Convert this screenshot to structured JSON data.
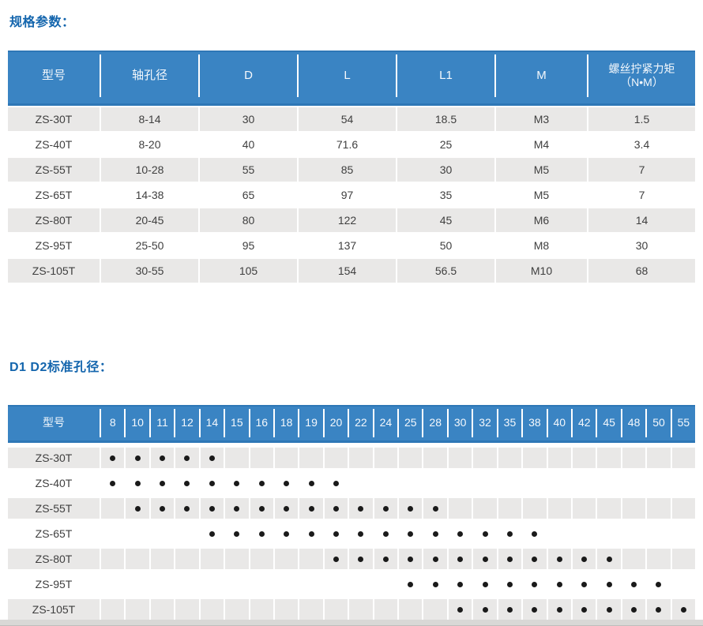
{
  "sections": {
    "spec": {
      "title": "规格参数："
    },
    "bore": {
      "title": "D1 D2标准孔径："
    }
  },
  "spec_table": {
    "headers": [
      [
        "型号"
      ],
      [
        "轴孔径"
      ],
      [
        "D"
      ],
      [
        "L"
      ],
      [
        "L1"
      ],
      [
        "M"
      ],
      [
        "螺丝拧紧力矩",
        "（N•M）"
      ]
    ],
    "rows": [
      [
        "ZS-30T",
        "8-14",
        "30",
        "54",
        "18.5",
        "M3",
        "1.5"
      ],
      [
        "ZS-40T",
        "8-20",
        "40",
        "71.6",
        "25",
        "M4",
        "3.4"
      ],
      [
        "ZS-55T",
        "10-28",
        "55",
        "85",
        "30",
        "M5",
        "7"
      ],
      [
        "ZS-65T",
        "14-38",
        "65",
        "97",
        "35",
        "M5",
        "7"
      ],
      [
        "ZS-80T",
        "20-45",
        "80",
        "122",
        "45",
        "M6",
        "14"
      ],
      [
        "ZS-95T",
        "25-50",
        "95",
        "137",
        "50",
        "M8",
        "30"
      ],
      [
        "ZS-105T",
        "30-55",
        "105",
        "154",
        "56.5",
        "M10",
        "68"
      ]
    ]
  },
  "bore_table": {
    "model_header": "型号",
    "sizes": [
      "8",
      "10",
      "11",
      "12",
      "14",
      "15",
      "16",
      "18",
      "19",
      "20",
      "22",
      "24",
      "25",
      "28",
      "30",
      "32",
      "35",
      "38",
      "40",
      "42",
      "45",
      "48",
      "50",
      "55"
    ],
    "rows": [
      {
        "model": "ZS-30T",
        "bores": [
          "8",
          "10",
          "11",
          "12",
          "14"
        ]
      },
      {
        "model": "ZS-40T",
        "bores": [
          "8",
          "10",
          "11",
          "12",
          "14",
          "15",
          "16",
          "18",
          "19",
          "20"
        ]
      },
      {
        "model": "ZS-55T",
        "bores": [
          "10",
          "11",
          "12",
          "14",
          "15",
          "16",
          "18",
          "19",
          "20",
          "22",
          "24",
          "25",
          "28"
        ]
      },
      {
        "model": "ZS-65T",
        "bores": [
          "14",
          "15",
          "16",
          "18",
          "19",
          "20",
          "22",
          "24",
          "25",
          "28",
          "30",
          "32",
          "35",
          "38"
        ]
      },
      {
        "model": "ZS-80T",
        "bores": [
          "20",
          "22",
          "24",
          "25",
          "28",
          "30",
          "32",
          "35",
          "38",
          "40",
          "42",
          "45"
        ]
      },
      {
        "model": "ZS-95T",
        "bores": [
          "25",
          "28",
          "30",
          "32",
          "35",
          "38",
          "40",
          "42",
          "45",
          "48",
          "50"
        ]
      },
      {
        "model": "ZS-105T",
        "bores": [
          "30",
          "32",
          "35",
          "38",
          "40",
          "42",
          "45",
          "48",
          "50",
          "55"
        ]
      }
    ]
  },
  "colors": {
    "header_blue": "#3a84c3",
    "header_edge_blue": "#2e77b6",
    "title_blue": "#1365ad",
    "zebra_row_gray": "#e9e8e7",
    "body_text": "#3f3f3f",
    "dot_black": "#1a1a1a"
  }
}
